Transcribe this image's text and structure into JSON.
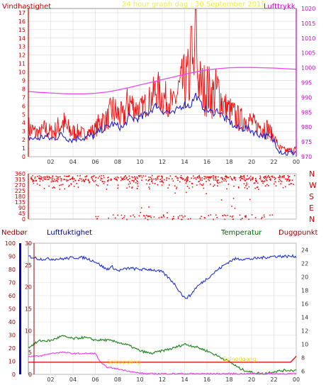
{
  "colors": {
    "wind": "#ee1111",
    "wind_mean": "#2222cc",
    "pressure": "#ee44ee",
    "direction": "#ee1111",
    "humidity": "#2233cc",
    "temperature": "#228822",
    "dewpoint": "#ee44ee",
    "precip": "#ee1111",
    "grid": "#d8d8d8",
    "title": "#eeee44",
    "axis_red": "#cc0000",
    "axis_magenta": "#cc00cc",
    "axis_blue": "#0000cc",
    "axis_navy": "#000080",
    "axis_green": "#006600",
    "axis_darkred": "#990000",
    "sun_label": "#dddd33"
  },
  "chart_data": [
    {
      "type": "line",
      "name": "wind",
      "title": "24 hour graph dag : 30.September 2019",
      "left_label": "Vindhastighet",
      "right_label": "Lufttrykk",
      "x_ticks": [
        "02",
        "04",
        "06",
        "08",
        "10",
        "12",
        "14",
        "16",
        "18",
        "20",
        "22",
        "00"
      ],
      "y_left_ticks": [
        "0",
        "1",
        "2",
        "3",
        "4",
        "5",
        "6",
        "7",
        "8",
        "9",
        "10",
        "11",
        "12",
        "13",
        "14",
        "15",
        "16",
        "17"
      ],
      "y_left_range": [
        0,
        17.5
      ],
      "y_right_ticks": [
        "970",
        "975",
        "980",
        "985",
        "990",
        "995",
        "1000",
        "1005",
        "1010",
        "1015",
        "1020"
      ],
      "y_right_range": [
        970,
        1020
      ],
      "grid": true,
      "series": [
        {
          "key": "gust",
          "hours": [
            0,
            0.5,
            1,
            1.5,
            2,
            2.5,
            3,
            3.5,
            4,
            4.5,
            5,
            5.5,
            6,
            6.5,
            7,
            7.5,
            8,
            8.5,
            9,
            9.5,
            10,
            10.5,
            11,
            11.5,
            12,
            12.5,
            13,
            13.5,
            14,
            14.5,
            15,
            15.5,
            16,
            16.5,
            17,
            17.5,
            18,
            18.5,
            19,
            19.5,
            20,
            20.5,
            21,
            21.5,
            22,
            22.5,
            23,
            23.5,
            24
          ],
          "values": [
            4.5,
            3.8,
            3.4,
            4.2,
            3.6,
            4.0,
            5.5,
            4.3,
            3.7,
            3.6,
            3.2,
            3.5,
            3.9,
            5.5,
            5.2,
            7.1,
            6.4,
            5.8,
            8.5,
            7.0,
            6.6,
            7.3,
            8.2,
            9.8,
            8.6,
            8.2,
            7.4,
            10.0,
            11.4,
            12.3,
            13.8,
            10.3,
            10.5,
            9.4,
            10.1,
            7.5,
            6.8,
            6.1,
            5.4,
            5.6,
            5.1,
            4.3,
            4.9,
            4.1,
            2.8,
            1.3,
            0.6,
            0.8,
            1.2
          ]
        },
        {
          "key": "mean",
          "hours": [
            0,
            0.5,
            1,
            1.5,
            2,
            2.5,
            3,
            3.5,
            4,
            4.5,
            5,
            5.5,
            6,
            6.5,
            7,
            7.5,
            8,
            8.5,
            9,
            9.5,
            10,
            10.5,
            11,
            11.5,
            12,
            12.5,
            13,
            13.5,
            14,
            14.5,
            15,
            15.5,
            16,
            16.5,
            17,
            17.5,
            18,
            18.5,
            19,
            19.5,
            20,
            20.5,
            21,
            21.5,
            22,
            22.5,
            23,
            23.5,
            24
          ],
          "values": [
            2.3,
            2.1,
            2.2,
            2.4,
            2.1,
            2.3,
            2.6,
            2.2,
            2.0,
            2.3,
            2.2,
            2.4,
            2.5,
            3.2,
            3.4,
            3.9,
            3.6,
            3.4,
            4.7,
            4.5,
            4.6,
            5.0,
            5.5,
            6.1,
            5.4,
            5.3,
            5.0,
            5.8,
            6.2,
            6.0,
            7.3,
            6.1,
            5.5,
            5.2,
            5.5,
            4.6,
            4.2,
            3.5,
            3.3,
            3.4,
            3.1,
            2.7,
            2.6,
            2.3,
            1.9,
            0.8,
            0.4,
            0.4,
            0.6
          ]
        },
        {
          "key": "pressure",
          "hours": [
            0,
            1,
            2,
            3,
            4,
            5,
            6,
            7,
            8,
            9,
            10,
            11,
            12,
            13,
            14,
            15,
            16,
            17,
            18,
            19,
            20,
            21,
            22,
            23,
            24
          ],
          "values": [
            992.0,
            991.7,
            991.5,
            991.3,
            991.2,
            991.2,
            991.4,
            991.8,
            992.5,
            993.3,
            994.2,
            995.1,
            996.0,
            996.9,
            997.8,
            998.6,
            999.3,
            999.7,
            1000.0,
            1000.1,
            1000.1,
            1000.0,
            999.9,
            999.7,
            999.5
          ]
        }
      ]
    },
    {
      "type": "scatter",
      "name": "direction",
      "y_left_ticks": [
        "0",
        "45",
        "90",
        "135",
        "180",
        "225",
        "270",
        "315",
        "360"
      ],
      "y_range": [
        0,
        360
      ],
      "right_labels": [
        "N",
        "W",
        "S",
        "E",
        "N"
      ],
      "grid": true,
      "bands": [
        {
          "deg_from": 300,
          "deg_to": 350,
          "hour_from": 0.2,
          "hour_to": 23.8,
          "density": 1.0
        },
        {
          "deg_from": 240,
          "deg_to": 295,
          "hour_from": 0.2,
          "hour_to": 23.8,
          "density": 0.25
        },
        {
          "deg_from": 0,
          "deg_to": 40,
          "hour_from": 6.0,
          "hour_to": 22.0,
          "density": 0.3
        },
        {
          "deg_from": 40,
          "deg_to": 220,
          "hour_from": 6.0,
          "hour_to": 20.0,
          "density": 0.05
        }
      ]
    },
    {
      "type": "line",
      "name": "humidity_temp",
      "labels": {
        "precip": "Nedbør",
        "humidity": "Luftfuktighet",
        "temperature": "Temperatur",
        "dewpoint": "Duggpunkt",
        "sunrise": "Soloppgang",
        "sunset": "Solnedgang"
      },
      "x_ticks": [
        "02",
        "04",
        "06",
        "08",
        "10",
        "12",
        "14",
        "16",
        "18",
        "20",
        "22",
        "00"
      ],
      "precip_ticks": [
        "0",
        "10",
        "20",
        "30",
        "40",
        "50",
        "60",
        "70",
        "80",
        "90",
        "100"
      ],
      "humidity_ticks": [
        "0",
        "5",
        "10",
        "15",
        "20",
        "25",
        "30"
      ],
      "temp_ticks": [
        "6",
        "8",
        "10",
        "12",
        "14",
        "16",
        "18",
        "20",
        "22",
        "24"
      ],
      "temp_range": [
        5.5,
        25
      ],
      "humidity_range": [
        0,
        100
      ],
      "sunrise_hour": 7.3,
      "sunset_hour": 19.2,
      "grid": true,
      "series": [
        {
          "key": "humidity",
          "hours": [
            0,
            1,
            2,
            3,
            4,
            5,
            6,
            7,
            7.5,
            8,
            9,
            10,
            11,
            12,
            13,
            13.5,
            14,
            14.5,
            15,
            16,
            17,
            18,
            18.5,
            19,
            20,
            21,
            22,
            23,
            24
          ],
          "values": [
            90,
            88,
            88,
            88,
            89,
            89,
            86,
            80,
            82,
            79,
            81,
            80,
            80,
            78,
            70,
            64,
            58,
            60,
            66,
            73,
            80,
            86,
            88,
            88,
            88,
            89,
            90,
            90,
            90
          ]
        },
        {
          "key": "temperature",
          "hours": [
            0,
            1,
            2,
            3,
            4,
            5,
            6,
            7,
            8,
            9,
            10,
            11,
            12,
            13,
            14,
            15,
            16,
            17,
            18,
            19,
            20,
            21,
            22,
            23,
            24
          ],
          "values": [
            9.5,
            10.5,
            10.5,
            11.2,
            10.8,
            11.0,
            10.6,
            10.6,
            10.3,
            9.8,
            9.0,
            8.6,
            9.0,
            9.4,
            10.0,
            9.6,
            9.0,
            8.2,
            7.4,
            6.3,
            5.8,
            5.6,
            5.9,
            6.1,
            6.1
          ]
        },
        {
          "key": "dewpoint",
          "hours": [
            0,
            1,
            2,
            3,
            4,
            5,
            6,
            6.5,
            7,
            8,
            9,
            9.5,
            10,
            10.5,
            11,
            24
          ],
          "values": [
            8.2,
            8.2,
            8.6,
            8.8,
            8.6,
            8.6,
            8.6,
            7.2,
            6.6,
            6.3,
            6.0,
            5.8,
            5.7,
            5.6,
            5.6,
            5.6
          ]
        },
        {
          "key": "precip_level",
          "hours": [
            0,
            23.5,
            24
          ],
          "values": [
            7.3,
            7.3,
            8.2
          ]
        }
      ]
    }
  ]
}
